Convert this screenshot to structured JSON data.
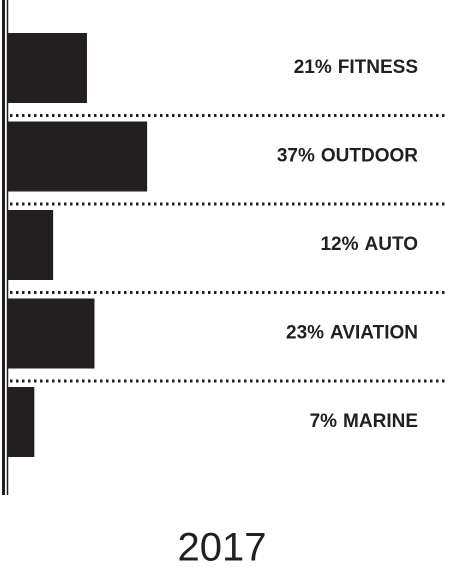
{
  "chart_data": {
    "type": "bar",
    "orientation": "horizontal",
    "title": "2017",
    "categories": [
      "FITNESS",
      "OUTDOOR",
      "AUTO",
      "AVIATION",
      "MARINE"
    ],
    "values": [
      21,
      37,
      12,
      23,
      7
    ],
    "value_labels": [
      "21%",
      "37%",
      "12%",
      "23%",
      "7%"
    ],
    "color": "#231f20",
    "xlim": [
      0,
      100
    ]
  }
}
